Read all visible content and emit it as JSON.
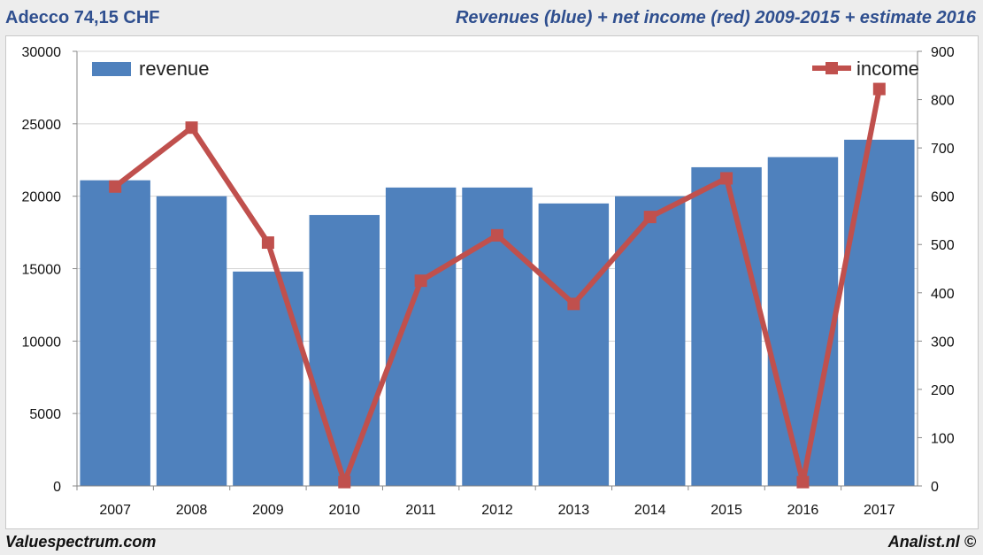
{
  "header": {
    "title_left": "Adecco 74,15 CHF",
    "title_right": "Revenues (blue) + net income (red) 2009-2015 + estimate 2016"
  },
  "footer": {
    "left": "Valuespectrum.com",
    "right": "Analist.nl ©"
  },
  "colors": {
    "bar": "#4f81bd",
    "line": "#c0504d",
    "header_text": "#2f4f8f"
  },
  "chart_data": {
    "type": "bar",
    "categories": [
      "2007",
      "2008",
      "2009",
      "2010",
      "2011",
      "2012",
      "2013",
      "2014",
      "2015",
      "2016",
      "2017"
    ],
    "series": [
      {
        "name": "revenue",
        "type": "bar",
        "axis": "left",
        "values": [
          21100,
          20000,
          14800,
          18700,
          20600,
          20600,
          19500,
          20000,
          22000,
          22700,
          23900
        ]
      },
      {
        "name": "income",
        "type": "line",
        "axis": "right",
        "values": [
          620,
          742,
          504,
          8,
          425,
          519,
          377,
          557,
          637,
          8,
          822
        ]
      }
    ],
    "y_left": {
      "min": 0,
      "max": 30000,
      "ticks": [
        "0",
        "5000",
        "10000",
        "15000",
        "20000",
        "25000",
        "30000"
      ]
    },
    "y_right": {
      "min": 0,
      "max": 900,
      "ticks": [
        "0",
        "100",
        "200",
        "300",
        "400",
        "500",
        "600",
        "700",
        "800",
        "900"
      ]
    },
    "grid": true,
    "legend": {
      "bar_position": "top-left",
      "line_position": "top-right"
    }
  }
}
